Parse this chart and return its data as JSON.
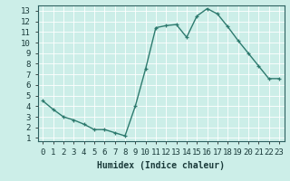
{
  "x": [
    0,
    1,
    2,
    3,
    4,
    5,
    6,
    7,
    8,
    9,
    10,
    11,
    12,
    13,
    14,
    15,
    16,
    17,
    18,
    19,
    20,
    21,
    22,
    23
  ],
  "y": [
    4.5,
    3.7,
    3.0,
    2.7,
    2.3,
    1.8,
    1.8,
    1.5,
    1.2,
    4.0,
    7.5,
    11.4,
    11.6,
    11.7,
    10.5,
    12.5,
    13.2,
    12.7,
    11.5,
    10.2,
    9.0,
    7.8,
    6.6,
    6.6
  ],
  "line_color": "#2d7a6e",
  "marker": "+",
  "marker_size": 3,
  "bg_color": "#cceee8",
  "grid_color": "#b0d8d2",
  "xlabel": "Humidex (Indice chaleur)",
  "xlim": [
    -0.5,
    23.5
  ],
  "ylim": [
    0.7,
    13.5
  ],
  "ytick_values": [
    1,
    2,
    3,
    4,
    5,
    6,
    7,
    8,
    9,
    10,
    11,
    12,
    13
  ],
  "xtick_labels": [
    "0",
    "1",
    "2",
    "3",
    "4",
    "5",
    "6",
    "7",
    "8",
    "9",
    "10",
    "11",
    "12",
    "13",
    "14",
    "15",
    "16",
    "17",
    "18",
    "19",
    "20",
    "21",
    "22",
    "23"
  ],
  "font_color": "#1a3a3a",
  "xlabel_fontsize": 7,
  "tick_fontsize": 6.5,
  "linewidth": 1.0,
  "spine_color": "#2d6060"
}
